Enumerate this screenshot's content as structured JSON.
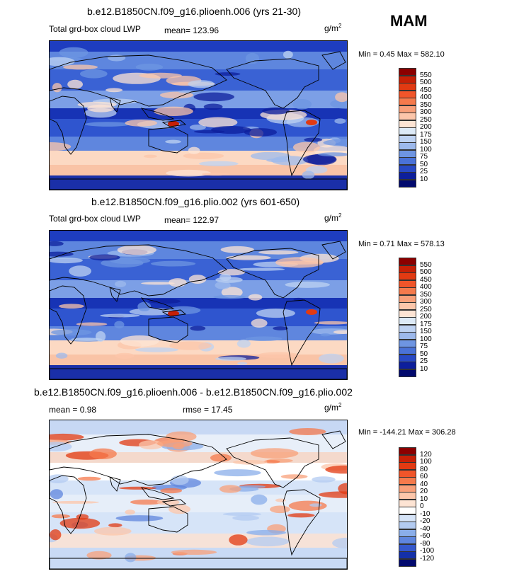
{
  "season": "MAM",
  "panels": [
    {
      "title": "b.e12.B1850CN.f09_g16.plioenh.006 (yrs 21-30)",
      "left_label": "Total grd-box cloud LWP",
      "mean_label": "mean= 123.96",
      "units": "g/m",
      "units_sup": "2",
      "min_max": "Min =   0.45 Max = 582.10",
      "colorbar": {
        "labels": [
          "550",
          "500",
          "450",
          "400",
          "350",
          "300",
          "250",
          "200",
          "175",
          "150",
          "100",
          "75",
          "50",
          "25",
          "10"
        ],
        "colors": [
          "#8b0000",
          "#c62006",
          "#e23a12",
          "#f0552a",
          "#f57a4c",
          "#f8a07a",
          "#fcc6aa",
          "#fde4d4",
          "#ddeaf7",
          "#bed2f2",
          "#9db9ec",
          "#6e95e2",
          "#4a72d8",
          "#2849c5",
          "#0d1f9c",
          "#020a6e"
        ]
      },
      "map_style": "lwp"
    },
    {
      "title": "b.e12.B1850CN.f09_g16.plio.002 (yrs 601-650)",
      "left_label": "Total grd-box cloud LWP",
      "mean_label": "mean= 122.97",
      "units": "g/m",
      "units_sup": "2",
      "min_max": "Min =   0.71 Max = 578.13",
      "colorbar": {
        "labels": [
          "550",
          "500",
          "450",
          "400",
          "350",
          "300",
          "250",
          "200",
          "175",
          "150",
          "100",
          "75",
          "50",
          "25",
          "10"
        ],
        "colors": [
          "#8b0000",
          "#c62006",
          "#e23a12",
          "#f0552a",
          "#f57a4c",
          "#f8a07a",
          "#fcc6aa",
          "#fde4d4",
          "#ddeaf7",
          "#bed2f2",
          "#9db9ec",
          "#6e95e2",
          "#4a72d8",
          "#2849c5",
          "#0d1f9c",
          "#020a6e"
        ]
      },
      "map_style": "lwp"
    },
    {
      "title": "b.e12.B1850CN.f09_g16.plioenh.006 - b.e12.B1850CN.f09_g16.plio.002",
      "left_label": "mean =    0.98",
      "mean_label": "rmse =   17.45",
      "units": "g/m",
      "units_sup": "2",
      "min_max": "Min = -144.21 Max = 306.28",
      "colorbar": {
        "labels": [
          "120",
          "100",
          "80",
          "60",
          "40",
          "20",
          "10",
          "0",
          "-10",
          "-20",
          "-40",
          "-60",
          "-80",
          "-100",
          "-120"
        ],
        "colors": [
          "#8b0000",
          "#c62006",
          "#e23a12",
          "#f0552a",
          "#f57a4c",
          "#f8a07a",
          "#fcc6aa",
          "#fde4d4",
          "#ffffff",
          "#d6e4f8",
          "#b3cbf1",
          "#8aaeea",
          "#5f86de",
          "#3558cc",
          "#1430a8",
          "#020a6e"
        ]
      },
      "map_style": "diff"
    }
  ]
}
